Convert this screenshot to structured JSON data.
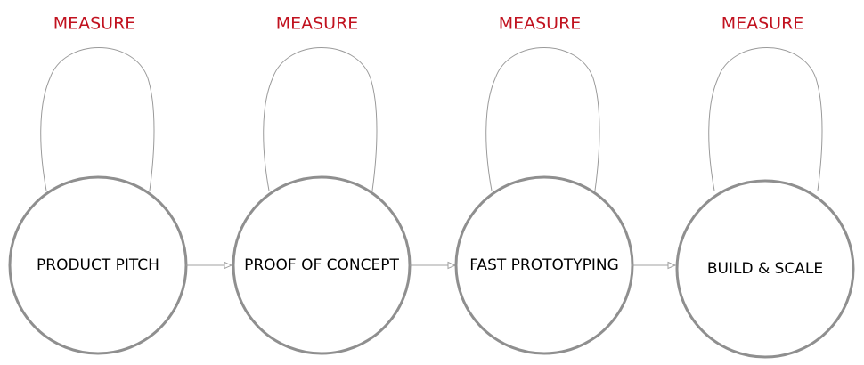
{
  "stages": [
    {
      "label": "PRODUCT PITCH",
      "loop_label": "MEASURE"
    },
    {
      "label": "PROOF OF CONCEPT",
      "loop_label": "MEASURE"
    },
    {
      "label": "FAST PROTOTYPING",
      "loop_label": "MEASURE"
    },
    {
      "label": "BUILD & SCALE",
      "loop_label": "MEASURE"
    }
  ],
  "colors": {
    "loop_label": "#c1121f",
    "circle_stroke": "#8f8f8f",
    "line": "#a0a0a0",
    "stage_text": "#000000"
  }
}
